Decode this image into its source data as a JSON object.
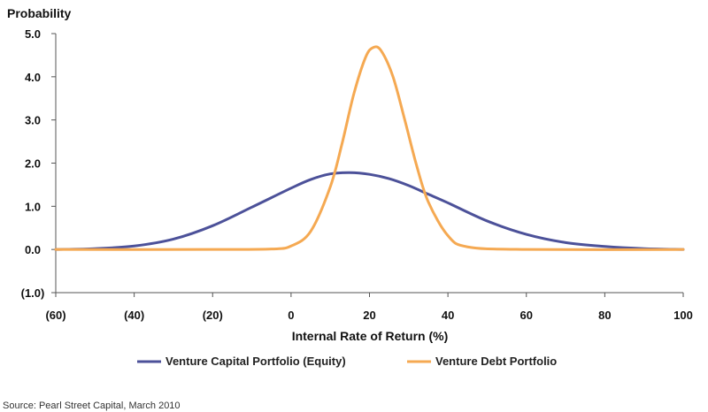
{
  "chart_data": {
    "type": "line",
    "ylabel": "Probability",
    "xlabel": "Internal Rate of Return (%)",
    "xlim": [
      -60,
      100
    ],
    "ylim": [
      -1.0,
      5.0
    ],
    "x_ticks": [
      -60,
      -40,
      -20,
      0,
      20,
      40,
      60,
      80,
      100
    ],
    "x_tick_labels": [
      "(60)",
      "(40)",
      "(20)",
      "0",
      "20",
      "40",
      "60",
      "80",
      "100"
    ],
    "y_ticks": [
      -1.0,
      0.0,
      1.0,
      2.0,
      3.0,
      4.0,
      5.0
    ],
    "y_tick_labels": [
      "(1.0)",
      "0.0",
      "1.0",
      "2.0",
      "3.0",
      "4.0",
      "5.0"
    ],
    "grid": false,
    "legend_position": "bottom",
    "series": [
      {
        "name": "Venture Capital Portfolio (Equity)",
        "color": "#4c5199",
        "x": [
          -60,
          -50,
          -40,
          -30,
          -20,
          -10,
          0,
          5,
          10,
          15,
          20,
          25,
          30,
          35,
          40,
          50,
          60,
          70,
          80,
          90,
          100
        ],
        "y": [
          0.0,
          0.02,
          0.08,
          0.24,
          0.55,
          0.98,
          1.42,
          1.62,
          1.75,
          1.78,
          1.74,
          1.64,
          1.48,
          1.28,
          1.08,
          0.66,
          0.35,
          0.16,
          0.07,
          0.02,
          0.0
        ]
      },
      {
        "name": "Venture Debt Portfolio",
        "color": "#f5a952",
        "x": [
          -60,
          -20,
          -5,
          0,
          5,
          10,
          13,
          16,
          19,
          21,
          23,
          26,
          29,
          32,
          35,
          40,
          45,
          60,
          100
        ],
        "y": [
          0.0,
          0.0,
          0.01,
          0.08,
          0.42,
          1.45,
          2.45,
          3.6,
          4.45,
          4.68,
          4.6,
          4.0,
          3.0,
          1.95,
          1.1,
          0.32,
          0.06,
          0.0,
          0.0
        ]
      }
    ]
  },
  "source": "Source: Pearl Street Capital, March 2010"
}
